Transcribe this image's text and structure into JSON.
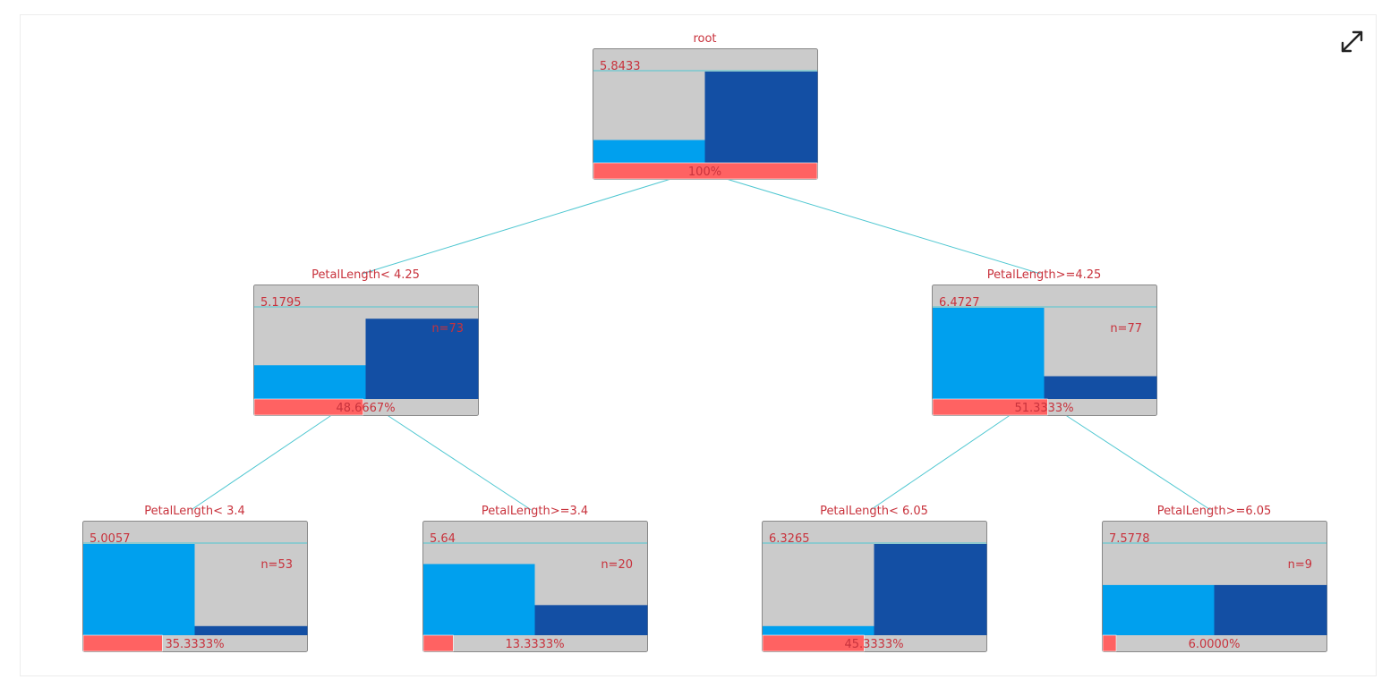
{
  "colors": {
    "panel": "#cbcbcb",
    "panel_border": "#888888",
    "bar_light": "#00a0ee",
    "bar_dark": "#134fa4",
    "coverage": "#ff6262",
    "edge": "#4fc7d1",
    "text": "#c8323c"
  },
  "expand_icon": "expand-arrows-icon",
  "tree": {
    "nodes": [
      {
        "id": "root",
        "label": "root",
        "value": "5.8433",
        "n_text": "",
        "bars": [
          0.25,
          1.0
        ],
        "coverage": 1.0,
        "percent": "100%"
      },
      {
        "id": "left",
        "label": "PetalLength< 4.25",
        "value": "5.1795",
        "n_text": "n=73",
        "bars": [
          0.37,
          0.88
        ],
        "coverage": 0.486667,
        "percent": "48.6667%"
      },
      {
        "id": "right",
        "label": "PetalLength>=4.25",
        "value": "6.4727",
        "n_text": "n=77",
        "bars": [
          1.0,
          0.25
        ],
        "coverage": 0.513333,
        "percent": "51.3333%"
      },
      {
        "id": "ll",
        "label": "PetalLength< 3.4",
        "value": "5.0057",
        "n_text": "n=53",
        "bars": [
          1.0,
          0.1
        ],
        "coverage": 0.353333,
        "percent": "35.3333%"
      },
      {
        "id": "lr",
        "label": "PetalLength>=3.4",
        "value": "5.64",
        "n_text": "n=20",
        "bars": [
          0.78,
          0.33
        ],
        "coverage": 0.133333,
        "percent": "13.3333%"
      },
      {
        "id": "rl",
        "label": "PetalLength< 6.05",
        "value": "6.3265",
        "n_text": "",
        "bars": [
          0.1,
          1.0
        ],
        "coverage": 0.453333,
        "percent": "45.3333%"
      },
      {
        "id": "rr",
        "label": "PetalLength>=6.05",
        "value": "7.5778",
        "n_text": "n=9",
        "bars": [
          0.55,
          0.55
        ],
        "coverage": 0.06,
        "percent": "6.0000%"
      }
    ],
    "edges": [
      [
        "root",
        "left"
      ],
      [
        "root",
        "right"
      ],
      [
        "left",
        "ll"
      ],
      [
        "left",
        "lr"
      ],
      [
        "right",
        "rl"
      ],
      [
        "right",
        "rr"
      ]
    ]
  }
}
